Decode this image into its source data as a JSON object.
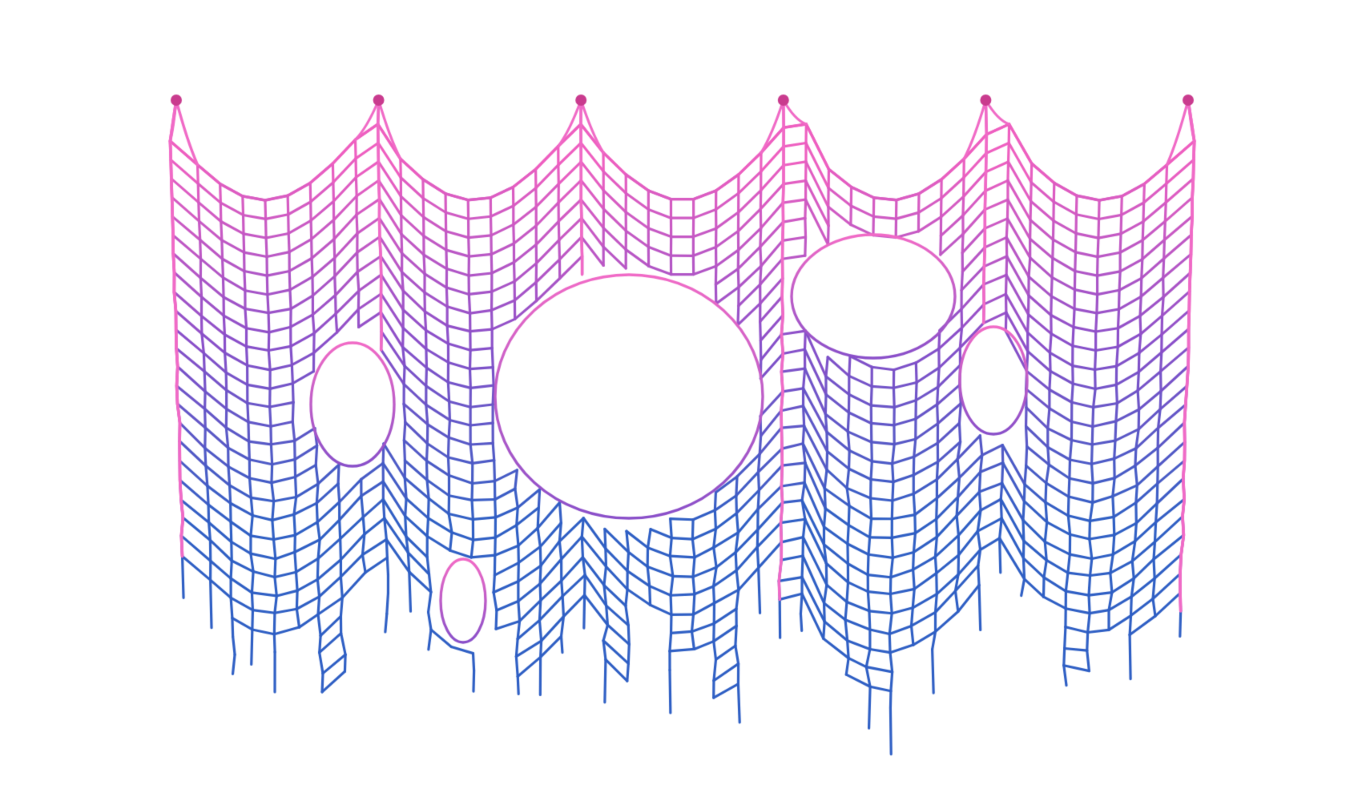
{
  "scene": {
    "subject": "torn-cloth-mesh",
    "background_color": "#ffffff",
    "colors": {
      "top": "#ee5fc0",
      "mid": "#8a4fc9",
      "bottom": "#2f5fc4",
      "pin": "#c93b8e",
      "highlight": "#f06ac6"
    },
    "grid": {
      "columns": 46,
      "rows": 28
    },
    "pins": {
      "count": 6
    },
    "tears": {
      "count": 5
    }
  }
}
